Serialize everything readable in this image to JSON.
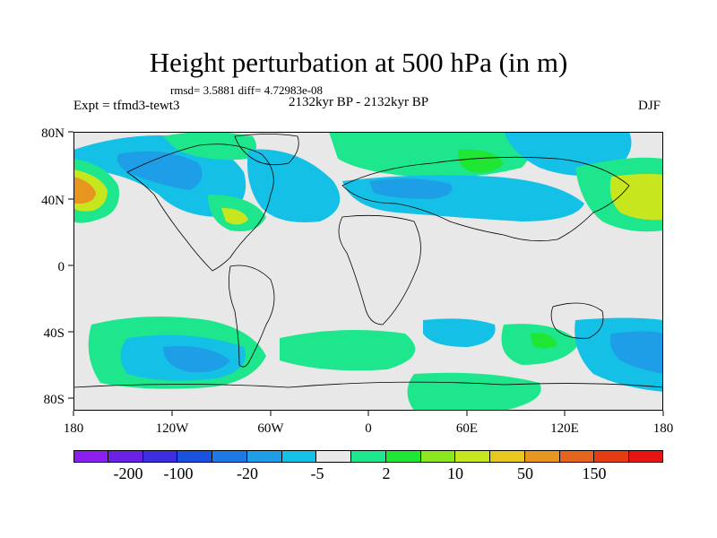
{
  "figure": {
    "title": "Height perturbation at 500 hPa (in m)",
    "stats": "rmsd= 3.5881 diff= 4.72983e-08",
    "experiment": "Expt = tfmd3-tewt3",
    "period": "2132kyr BP - 2132kyr BP",
    "season": "DJF"
  },
  "axes": {
    "lat_labels": [
      "80N",
      "40N",
      "0",
      "40S",
      "80S"
    ],
    "lon_labels": [
      "180",
      "120W",
      "60W",
      "0",
      "60E",
      "120E",
      "180"
    ]
  },
  "legend": {
    "labels": [
      "-200",
      "-100",
      "-20",
      "-5",
      "2",
      "10",
      "50",
      "150"
    ],
    "colors": [
      "#8c1ef0",
      "#6a22e6",
      "#3c2ee0",
      "#1a52e0",
      "#1e78e6",
      "#1e9ee6",
      "#14c0e6",
      "#e8e8e8",
      "#1ee68c",
      "#1ee632",
      "#8ce61e",
      "#c8e61e",
      "#e6c81e",
      "#e6961e",
      "#e6641e",
      "#e63c14",
      "#e61414"
    ]
  },
  "colors": {
    "blue_dark": "#1e78e6",
    "blue_mid": "#1e9ee6",
    "cyan": "#14c0e6",
    "neutral": "#e8e8e8",
    "green": "#1ee68c",
    "green_dark": "#1ee632",
    "yellow_green": "#c8e61e",
    "orange": "#e6961e"
  }
}
